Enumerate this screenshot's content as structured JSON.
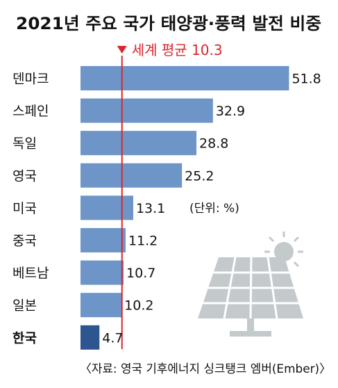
{
  "chart_data": {
    "type": "bar",
    "orientation": "horizontal",
    "title": "2021년 주요 국가 태양광·풍력 발전 비중",
    "categories": [
      "덴마크",
      "스페인",
      "독일",
      "영국",
      "미국",
      "중국",
      "베트남",
      "일본",
      "한국"
    ],
    "values": [
      51.8,
      32.9,
      28.8,
      25.2,
      13.1,
      11.2,
      10.7,
      10.2,
      4.7
    ],
    "value_labels": [
      "51.8",
      "32.9",
      "28.8",
      "25.2",
      "13.1",
      "11.2",
      "10.7",
      "10.2",
      "4.7"
    ],
    "highlight_category": "한국",
    "reference_line": {
      "label": "세계 평균 10.3",
      "value": 10.3
    },
    "unit_note": "(단위: %)",
    "source": "〈자료: 영국 기후에너지 싱크탱크 엠버(Ember)〉",
    "xlim": [
      0,
      52
    ],
    "grid": false,
    "legend": "none",
    "colors": {
      "bar": "#6d95c8",
      "highlight_bar": "#2d5590",
      "reference_line": "#d9252e",
      "illustration": "#bfc4c8"
    }
  }
}
